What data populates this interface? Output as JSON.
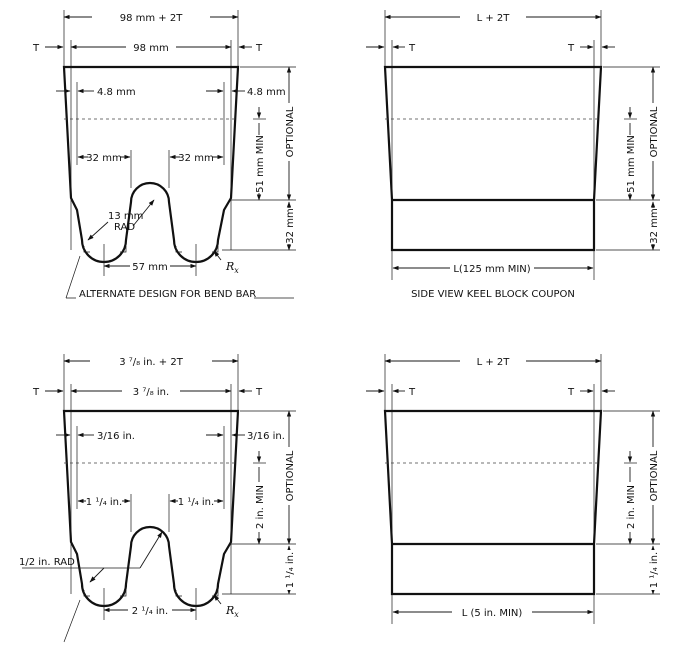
{
  "metric_bend_bar": {
    "overall_width": "98 mm + 2T",
    "top_width": "98 mm",
    "t_left": "T",
    "t_right": "T",
    "inset_left": "4.8 mm",
    "inset_right": "4.8 mm",
    "optional": "OPTIONAL",
    "min_height": "51 mm MIN",
    "base_height": "32 mm",
    "radius_value": "13 mm",
    "radius_suffix": "RAD",
    "gap_left": "32 mm",
    "gap_right": "32 mm",
    "base_width": "57 mm",
    "rx_symbol": "R",
    "rx_subscript": "x",
    "caption": "ALTERNATE DESIGN FOR BEND BAR"
  },
  "metric_side_view": {
    "overall_length": "L + 2T",
    "t_left": "T",
    "t_right": "T",
    "optional": "OPTIONAL",
    "min_height": "51 mm MIN",
    "base_height": "32 mm",
    "length": "L(125 mm MIN)",
    "caption": "SIDE VIEW KEEL BLOCK COUPON"
  },
  "inch_bend_bar": {
    "overall_width": "3 ⁷/₈ in. + 2T",
    "top_width": "3 ⁷/₈ in.",
    "t_left": "T",
    "t_right": "T",
    "inset_left": "3/16 in.",
    "inset_right": "3/16 in.",
    "optional": "OPTIONAL",
    "min_height": "2 in. MIN",
    "base_height": "1 ¹/₄ in.",
    "radius": "1/2 in. RAD",
    "gap_left": "1 ¹/₄ in.",
    "gap_right": "1 ¹/₄ in.",
    "base_width": "2 ¹/₄ in.",
    "rx_symbol": "R",
    "rx_subscript": "x"
  },
  "inch_side_view": {
    "overall_length": "L + 2T",
    "t_left": "T",
    "t_right": "T",
    "optional": "OPTIONAL",
    "min_height": "2 in. MIN",
    "base_height": "1 ¹/₄ in.",
    "length": "L (5 in. MIN)"
  }
}
